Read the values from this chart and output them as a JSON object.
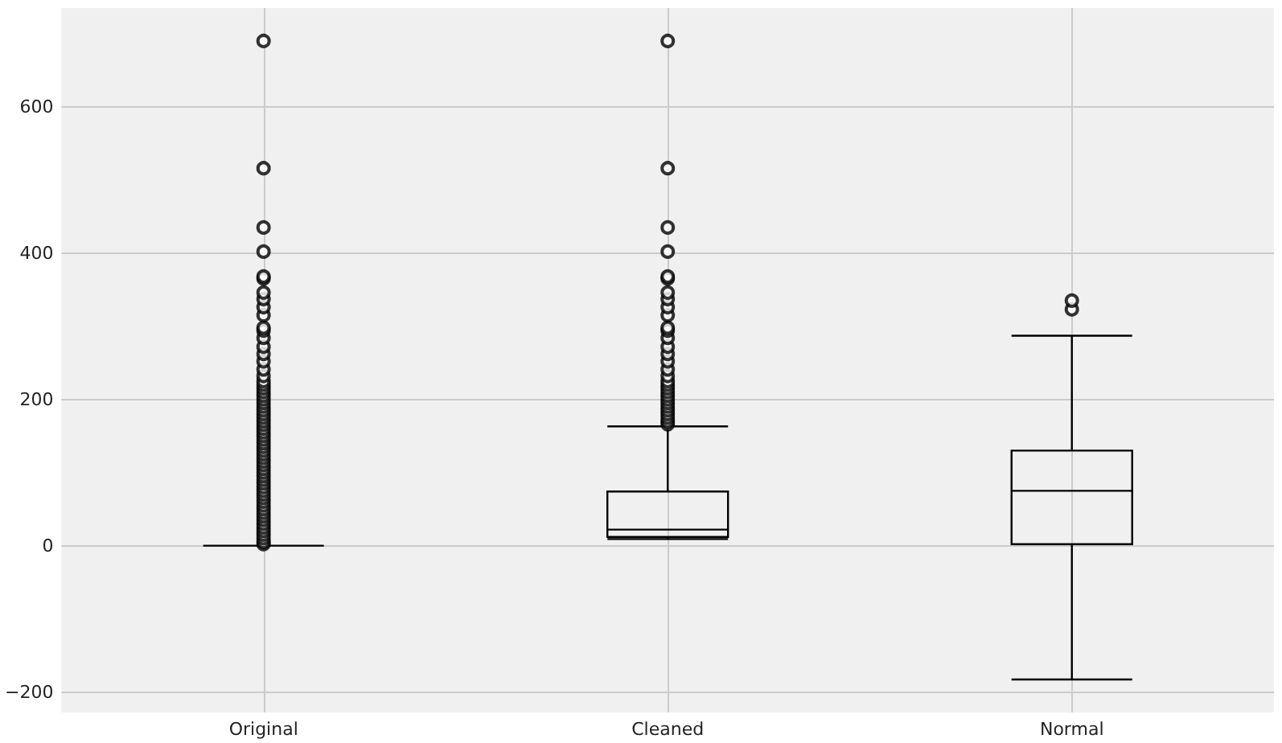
{
  "chart_data": {
    "type": "box",
    "categories": [
      "Original",
      "Cleaned",
      "Normal"
    ],
    "series": [
      {
        "color": "#000000",
        "boxes": [
          {
            "low": 0,
            "q1": 0,
            "median": 0,
            "q3": 0,
            "high": 0,
            "outliers": [
              2,
              5,
              10,
              15,
              20,
              25,
              30,
              35,
              40,
              45,
              50,
              55,
              60,
              65,
              70,
              75,
              80,
              85,
              90,
              95,
              100,
              105,
              110,
              115,
              120,
              125,
              130,
              135,
              140,
              145,
              150,
              155,
              160,
              165,
              170,
              175,
              180,
              185,
              190,
              195,
              200,
              205,
              210,
              215,
              220,
              225,
              232,
              241,
              252,
              262,
              272,
              284,
              294,
              298,
              315,
              326,
              337,
              346,
              365,
              368,
              402,
              435,
              516,
              690
            ]
          },
          {
            "low": 9,
            "q1": 12,
            "median": 22,
            "q3": 74,
            "high": 163,
            "outliers": [
              166,
              170,
              175,
              180,
              185,
              190,
              195,
              200,
              205,
              210,
              215,
              220,
              225,
              232,
              241,
              252,
              262,
              272,
              284,
              294,
              298,
              315,
              326,
              337,
              346,
              365,
              368,
              402,
              435,
              516,
              690
            ]
          },
          {
            "low": -183,
            "q1": 2,
            "median": 75,
            "q3": 130,
            "high": 287,
            "outliers": [
              323,
              335
            ]
          }
        ]
      }
    ],
    "ylim": [
      -228,
      735
    ],
    "yticks": [
      -200,
      0,
      200,
      400,
      600
    ],
    "grid": true,
    "marker": "circle"
  }
}
